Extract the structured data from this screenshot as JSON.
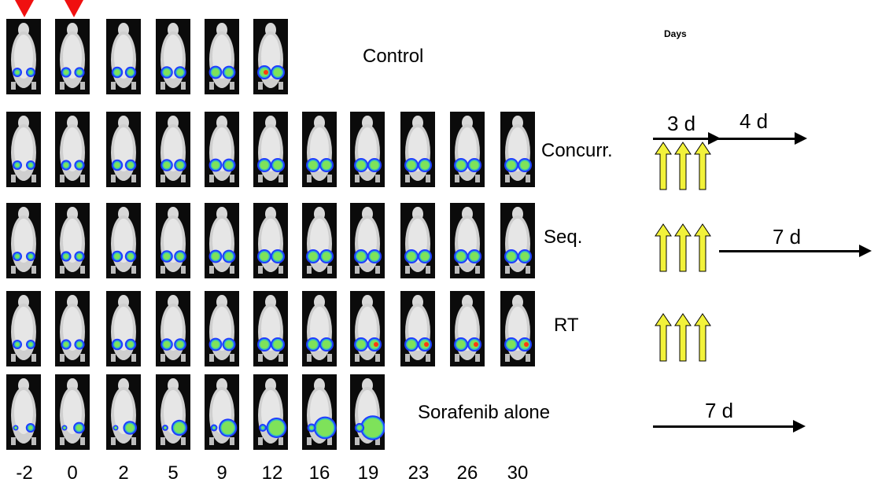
{
  "days_title": "Days",
  "day_labels": [
    "-2",
    "0",
    "2",
    "5",
    "9",
    "12",
    "16",
    "19",
    "23",
    "26",
    "30"
  ],
  "groups": [
    {
      "label": "Control",
      "mice": 6
    },
    {
      "label": "Concurr.",
      "mice": 11
    },
    {
      "label": "Seq.",
      "mice": 11
    },
    {
      "label": "RT",
      "mice": 11
    },
    {
      "label": "Sorafenib alone",
      "mice": 8
    }
  ],
  "schedule": {
    "concurr": {
      "first": "3 d",
      "second": "4 d"
    },
    "seq": {
      "label": "7 d"
    },
    "sorafenib": {
      "label": "7 d"
    }
  },
  "colors": {
    "marker": "#f01010",
    "yellow_arrow": "#f2f23a",
    "signal_blue": "#1f3cff",
    "signal_green": "#7ee25a",
    "signal_hot": "#ff3a10"
  }
}
